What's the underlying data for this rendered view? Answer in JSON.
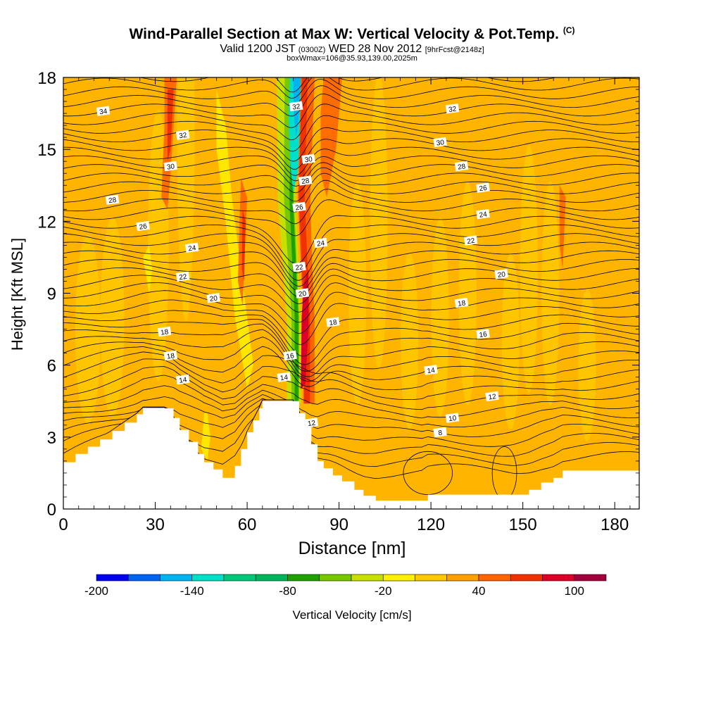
{
  "header": {
    "title": "Wind-Parallel Section at Max W: Vertical Velocity & Pot.Temp.",
    "copyright": "(C)",
    "valid_prefix": "Valid 1200 JST",
    "valid_zulu": "(0300Z)",
    "valid_date": "WED 28 Nov 2012",
    "forecast": "[9hrFcst@2148z]",
    "box_info": "boxWmax=106@35.93,139.00,2025m"
  },
  "chart_data": {
    "type": "heatmap",
    "xlabel": "Distance [nm]",
    "ylabel": "Height [Kft MSL]",
    "xlim": [
      0,
      188
    ],
    "ylim": [
      0,
      18
    ],
    "x_ticks": [
      0,
      30,
      60,
      90,
      120,
      150,
      180
    ],
    "y_ticks": [
      0,
      3,
      6,
      9,
      12,
      15,
      18
    ],
    "colorbar": {
      "label": "Vertical Velocity [cm/s]",
      "tick_labels": [
        -200,
        -140,
        -80,
        -20,
        40,
        100
      ],
      "boundaries": [
        -200,
        -180,
        -160,
        -140,
        -120,
        -100,
        -80,
        -60,
        -40,
        -20,
        0,
        20,
        40,
        60,
        80,
        100,
        120
      ],
      "colors": [
        "#0000f0",
        "#0064f0",
        "#00b4f0",
        "#00e0c8",
        "#00c878",
        "#00b45a",
        "#1ea000",
        "#78c800",
        "#c8e000",
        "#fff000",
        "#ffc800",
        "#ffa000",
        "#ff6400",
        "#f03200",
        "#dc0028",
        "#a0003c",
        "#6e1ea0"
      ]
    },
    "terrain_kft": [
      [
        0,
        1.95
      ],
      [
        4,
        2.3
      ],
      [
        8,
        2.6
      ],
      [
        12,
        2.9
      ],
      [
        16,
        3.25
      ],
      [
        20,
        3.6
      ],
      [
        24,
        3.95
      ],
      [
        26,
        4.2
      ],
      [
        33,
        4.2
      ],
      [
        36,
        3.8
      ],
      [
        38,
        3.3
      ],
      [
        41,
        2.8
      ],
      [
        44,
        2.3
      ],
      [
        46,
        1.95
      ],
      [
        49,
        1.65
      ],
      [
        52,
        1.3
      ],
      [
        56,
        1.8
      ],
      [
        58,
        2.5
      ],
      [
        60,
        3.2
      ],
      [
        62,
        3.7
      ],
      [
        64,
        4.2
      ],
      [
        65,
        4.5
      ],
      [
        75,
        4.5
      ],
      [
        77,
        4.0
      ],
      [
        79,
        3.5
      ],
      [
        81,
        2.7
      ],
      [
        83,
        2.0
      ],
      [
        85,
        1.7
      ],
      [
        88,
        1.4
      ],
      [
        91,
        1.15
      ],
      [
        95,
        0.8
      ],
      [
        98,
        0.55
      ],
      [
        102,
        0.35
      ],
      [
        108,
        0.35
      ],
      [
        117,
        0.35
      ],
      [
        119,
        0.6
      ],
      [
        125,
        0.6
      ],
      [
        143,
        0.6
      ],
      [
        147,
        0.6
      ],
      [
        152,
        0.8
      ],
      [
        156,
        1.1
      ],
      [
        160,
        1.3
      ],
      [
        163,
        1.6
      ],
      [
        173,
        1.6
      ],
      [
        188,
        1.6
      ]
    ],
    "theta_labels": [
      {
        "text": "34",
        "x": 13,
        "y": 16.6
      },
      {
        "text": "32",
        "x": 39,
        "y": 15.6
      },
      {
        "text": "30",
        "x": 35,
        "y": 14.3
      },
      {
        "text": "28",
        "x": 16,
        "y": 12.9
      },
      {
        "text": "26",
        "x": 26,
        "y": 11.8
      },
      {
        "text": "24",
        "x": 42,
        "y": 10.9
      },
      {
        "text": "22",
        "x": 39,
        "y": 9.7
      },
      {
        "text": "20",
        "x": 49,
        "y": 8.8
      },
      {
        "text": "18",
        "x": 33,
        "y": 7.4
      },
      {
        "text": "18",
        "x": 35,
        "y": 6.4
      },
      {
        "text": "14",
        "x": 39,
        "y": 5.4
      },
      {
        "text": "32",
        "x": 76,
        "y": 16.8
      },
      {
        "text": "30",
        "x": 80,
        "y": 14.6
      },
      {
        "text": "28",
        "x": 79,
        "y": 13.7
      },
      {
        "text": "26",
        "x": 77,
        "y": 12.6
      },
      {
        "text": "24",
        "x": 84,
        "y": 11.1
      },
      {
        "text": "22",
        "x": 77,
        "y": 10.1
      },
      {
        "text": "20",
        "x": 78,
        "y": 9.0
      },
      {
        "text": "18",
        "x": 88,
        "y": 7.8
      },
      {
        "text": "16",
        "x": 74,
        "y": 6.4
      },
      {
        "text": "14",
        "x": 72,
        "y": 5.5
      },
      {
        "text": "12",
        "x": 81,
        "y": 3.6
      },
      {
        "text": "32",
        "x": 127,
        "y": 16.7
      },
      {
        "text": "30",
        "x": 123,
        "y": 15.3
      },
      {
        "text": "28",
        "x": 130,
        "y": 14.3
      },
      {
        "text": "26",
        "x": 137,
        "y": 13.4
      },
      {
        "text": "24",
        "x": 137,
        "y": 12.3
      },
      {
        "text": "22",
        "x": 133,
        "y": 11.2
      },
      {
        "text": "20",
        "x": 143,
        "y": 9.8
      },
      {
        "text": "18",
        "x": 130,
        "y": 8.6
      },
      {
        "text": "16",
        "x": 137,
        "y": 7.3
      },
      {
        "text": "14",
        "x": 120,
        "y": 5.8
      },
      {
        "text": "12",
        "x": 140,
        "y": 4.7
      },
      {
        "text": "10",
        "x": 127,
        "y": 3.8
      },
      {
        "text": "8",
        "x": 123,
        "y": 3.2
      }
    ]
  }
}
